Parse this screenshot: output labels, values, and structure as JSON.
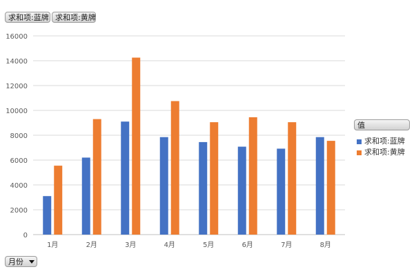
{
  "field_buttons": {
    "blue": "求和项:蓝牌",
    "yellow": "求和项:黄牌"
  },
  "legend": {
    "title": "值",
    "items": [
      "求和项:蓝牌",
      "求和项:黄牌"
    ]
  },
  "filter": {
    "label": "月份"
  },
  "colors": {
    "blue": "#4472c4",
    "orange": "#ed7d31",
    "grid": "#d9d9d9",
    "axis": "#bfbfbf"
  },
  "chart_data": {
    "type": "bar",
    "categories": [
      "1月",
      "2月",
      "3月",
      "4月",
      "5月",
      "6月",
      "7月",
      "8月"
    ],
    "series": [
      {
        "name": "求和项:蓝牌",
        "values": [
          3100,
          6200,
          9100,
          7850,
          7450,
          7080,
          6920,
          7850
        ]
      },
      {
        "name": "求和项:黄牌",
        "values": [
          5550,
          9300,
          14250,
          10750,
          9050,
          9450,
          9050,
          7550
        ]
      }
    ],
    "yticks": [
      "0",
      "2000",
      "4000",
      "6000",
      "8000",
      "10000",
      "12000",
      "14000",
      "16000"
    ],
    "ylim": [
      0,
      16000
    ],
    "grid": true,
    "legend_position": "right"
  }
}
